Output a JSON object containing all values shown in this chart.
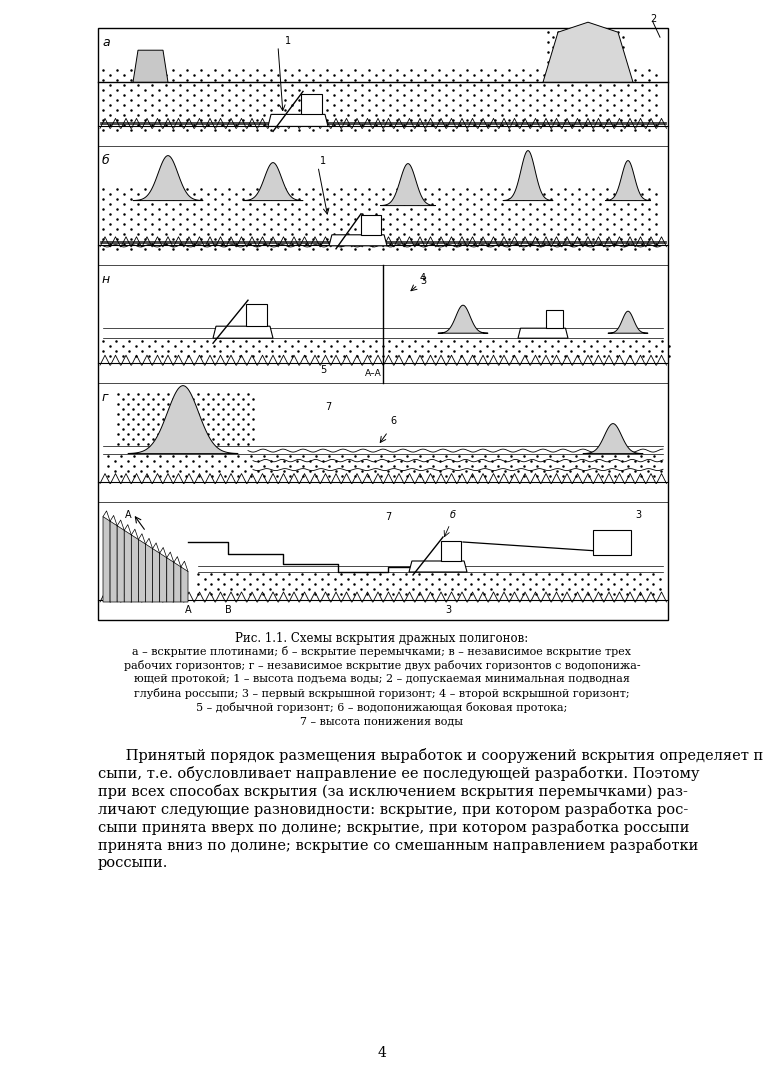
{
  "bg_color": "#ffffff",
  "page_width": 7.64,
  "page_height": 10.8,
  "dpi": 100,
  "caption_title": "Рис. 1.1. Схемы вскрытия дражных полигонов:",
  "caption_lines": [
    "а – вскрытие плотинами; б – вскрытие перемычками; в – независимое вскрытие трех",
    "рабочих горизонтов; г – независимое вскрытие двух рабочих горизонтов с водопонижа-",
    "ющей протокой; 1 – высота подъема воды; 2 – допускаемая минимальная подводная",
    "глубина россыпи; 3 – первый вскрышной горизонт; 4 – второй вскрышной горизонт;",
    "5 – добычной горизонт; 6 – водопонижающая боковая протока;",
    "7 – высота понижения воды"
  ],
  "paragraph": "Принятый порядок размещения выработок и сооружений вскрытия определяет последовательность подхода драги к отдельным участкам рос-\nсыпи, т.е. обусловливает направление ее последующей разработки. Поэтому\nпри всех способах вскрытия (за исключением вскрытия перемычками) раз-\nличают следующие разновидности: вскрытие, при котором разработка рос-\nсыпи принята вверх по долине; вскрытие, при котором разработка россыпи\nпринята вниз по долине; вскрытие со смешанным направлением разработки\nроссыпи.",
  "page_number": "4"
}
